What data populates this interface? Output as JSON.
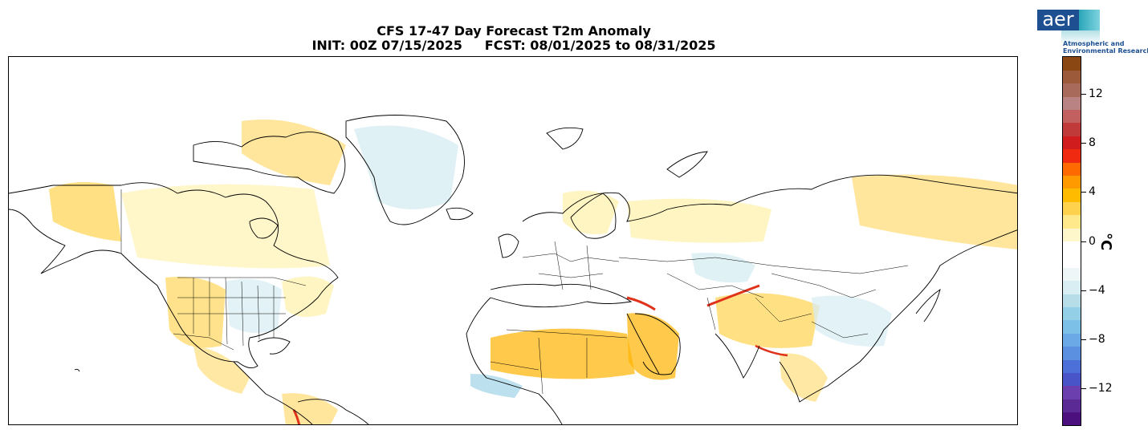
{
  "header": {
    "title_line1": "CFS 17-47 Day Forecast T2m Anomaly",
    "title_line2": "INIT: 00Z 07/15/2025     FCST: 08/01/2025 to 08/31/2025"
  },
  "logo": {
    "mark": "aer",
    "name_line1": "Atmospheric and",
    "name_line2": "Environmental Research"
  },
  "colorbar": {
    "unit": "°C",
    "min": -15,
    "max": 15,
    "ticks": [
      {
        "value": 12,
        "label": "12"
      },
      {
        "value": 8,
        "label": "8"
      },
      {
        "value": 4,
        "label": "4"
      },
      {
        "value": 0,
        "label": "0"
      },
      {
        "value": -4,
        "label": "−4"
      },
      {
        "value": -8,
        "label": "−8"
      },
      {
        "value": -12,
        "label": "−12"
      }
    ],
    "colors": [
      "#4b0f7e",
      "#5b2a95",
      "#6b3fae",
      "#4a54c9",
      "#4d6fd8",
      "#5b8fe0",
      "#6aa8e6",
      "#7cc0e8",
      "#93cfe6",
      "#b7dde9",
      "#d8eef3",
      "#eef6f8",
      "#ffffff",
      "#ffffff",
      "#fff7cc",
      "#ffe98a",
      "#ffd24d",
      "#ffbb00",
      "#ff9a00",
      "#ff6a00",
      "#f02a10",
      "#d01c1c",
      "#c03a3a",
      "#c26060",
      "#b98383",
      "#a86a5a",
      "#9c5a3a",
      "#8a4613"
    ]
  },
  "map": {
    "land_color": "#ffffff",
    "coast_color": "#000000",
    "warm_light": "#fff2b3",
    "warm_mid": "#ffd55a",
    "warm_strong": "#ffb300",
    "cool_light": "#d8eef3",
    "cool_mid": "#9fd3e6",
    "hot_streak": "#e0321a"
  }
}
